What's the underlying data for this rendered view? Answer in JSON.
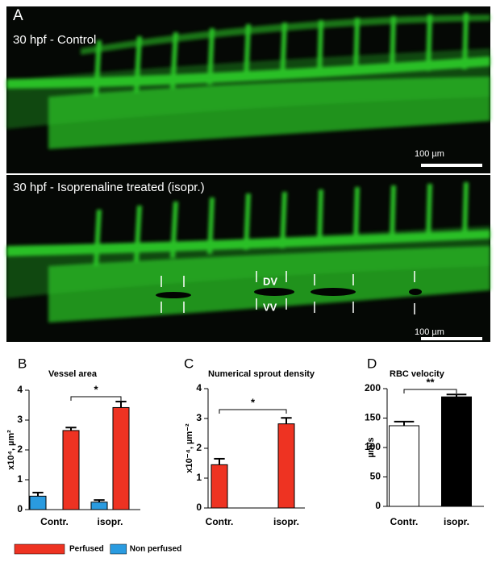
{
  "figure_label": "A",
  "images": [
    {
      "caption": "30 hpf - Control",
      "scale_bar": "100 µm"
    },
    {
      "caption": "30 hpf - Isoprenaline treated (isopr.)",
      "scale_bar": "100 µm",
      "labels": [
        "DV",
        "VV"
      ]
    }
  ],
  "chart_data": [
    {
      "type": "bar",
      "panel": "B",
      "title": "Vessel area",
      "y_label": "x10⁴, µm²",
      "categories": [
        "Contr.",
        "isopr."
      ],
      "series": [
        {
          "name": "Perfused",
          "color": "#ee3322",
          "values": [
            2.65,
            3.42
          ],
          "errors": [
            0.1,
            0.2
          ]
        },
        {
          "name": "Non perfused",
          "color": "#2a9be0",
          "values": [
            0.45,
            0.25
          ],
          "errors": [
            0.12,
            0.07
          ]
        }
      ],
      "ylim": [
        0,
        4
      ],
      "yticks": [
        0,
        1,
        2,
        3,
        4
      ],
      "significance": "*"
    },
    {
      "type": "bar",
      "panel": "C",
      "title": "Numerical sprout density",
      "y_label": "x10⁻⁴, µm⁻²",
      "categories": [
        "Contr.",
        "isopr."
      ],
      "values": [
        1.45,
        2.82
      ],
      "errors": [
        0.2,
        0.2
      ],
      "color": "#ee3322",
      "ylim": [
        0,
        4
      ],
      "yticks": [
        0,
        1,
        2,
        3,
        4
      ],
      "significance": "*"
    },
    {
      "type": "bar",
      "panel": "D",
      "title": "RBC velocity",
      "y_label": "µm/s",
      "categories": [
        "Contr.",
        "isopr."
      ],
      "values": [
        137,
        186
      ],
      "errors": [
        7,
        4
      ],
      "colors": [
        "#ffffff",
        "#000000"
      ],
      "ylim": [
        0,
        200
      ],
      "yticks": [
        0,
        50,
        100,
        150,
        200
      ],
      "significance": "**"
    }
  ]
}
